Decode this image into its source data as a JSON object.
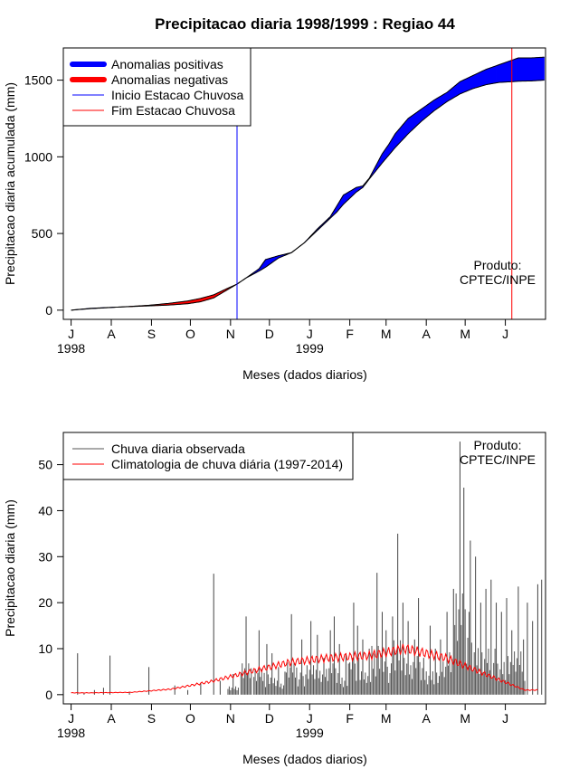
{
  "title": "Precipitacao diaria 1998/1999 : Regiao 44",
  "product_label": "Produto:",
  "product_org": "CPTEC/INPE",
  "chart_data": [
    {
      "type": "area",
      "name": "cumulative",
      "ylabel": "Precipitacao diaria acumulada (mm)",
      "xlabel": "Meses (dados diarios)",
      "x_ticks": [
        "J",
        "A",
        "S",
        "O",
        "N",
        "D",
        "J",
        "F",
        "M",
        "A",
        "M",
        "J"
      ],
      "x_years": [
        "1998",
        "1999"
      ],
      "y_ticks": [
        0,
        500,
        1000,
        1500
      ],
      "ylim": [
        -60,
        1710
      ],
      "xlim_days": [
        -6,
        366
      ],
      "legend": [
        {
          "label": "Anomalias positivas",
          "color": "#0000ff",
          "style": "thick"
        },
        {
          "label": "Anomalias negativas",
          "color": "#ff0000",
          "style": "thick"
        },
        {
          "label": "Inicio Estacao Chuvosa",
          "color": "#0000ff",
          "style": "thin"
        },
        {
          "label": "Fim Estacao Chuvosa",
          "color": "#ff0000",
          "style": "thin"
        }
      ],
      "rain_season_start_day": 128,
      "rain_season_end_day": 340,
      "observed_cumulative": [
        [
          0,
          0
        ],
        [
          15,
          12
        ],
        [
          30,
          18
        ],
        [
          45,
          23
        ],
        [
          60,
          28
        ],
        [
          75,
          33
        ],
        [
          90,
          42
        ],
        [
          100,
          55
        ],
        [
          110,
          80
        ],
        [
          120,
          130
        ],
        [
          128,
          170
        ],
        [
          135,
          210
        ],
        [
          145,
          270
        ],
        [
          150,
          330
        ],
        [
          160,
          355
        ],
        [
          170,
          375
        ],
        [
          180,
          440
        ],
        [
          190,
          530
        ],
        [
          200,
          610
        ],
        [
          205,
          680
        ],
        [
          210,
          750
        ],
        [
          220,
          800
        ],
        [
          225,
          810
        ],
        [
          230,
          860
        ],
        [
          240,
          1020
        ],
        [
          245,
          1080
        ],
        [
          250,
          1150
        ],
        [
          260,
          1250
        ],
        [
          270,
          1310
        ],
        [
          280,
          1370
        ],
        [
          290,
          1420
        ],
        [
          300,
          1490
        ],
        [
          310,
          1530
        ],
        [
          320,
          1570
        ],
        [
          330,
          1600
        ],
        [
          340,
          1630
        ],
        [
          345,
          1645
        ],
        [
          355,
          1645
        ],
        [
          365,
          1650
        ]
      ],
      "climatology_cumulative": [
        [
          0,
          0
        ],
        [
          15,
          10
        ],
        [
          30,
          17
        ],
        [
          45,
          24
        ],
        [
          60,
          32
        ],
        [
          75,
          44
        ],
        [
          90,
          60
        ],
        [
          100,
          77
        ],
        [
          110,
          100
        ],
        [
          120,
          140
        ],
        [
          128,
          170
        ],
        [
          135,
          210
        ],
        [
          145,
          255
        ],
        [
          150,
          280
        ],
        [
          160,
          340
        ],
        [
          170,
          375
        ],
        [
          180,
          440
        ],
        [
          190,
          520
        ],
        [
          200,
          600
        ],
        [
          205,
          640
        ],
        [
          210,
          690
        ],
        [
          220,
          770
        ],
        [
          225,
          800
        ],
        [
          230,
          855
        ],
        [
          240,
          960
        ],
        [
          245,
          1010
        ],
        [
          250,
          1060
        ],
        [
          260,
          1150
        ],
        [
          270,
          1230
        ],
        [
          280,
          1300
        ],
        [
          290,
          1360
        ],
        [
          300,
          1410
        ],
        [
          310,
          1445
        ],
        [
          320,
          1470
        ],
        [
          330,
          1485
        ],
        [
          340,
          1490
        ],
        [
          345,
          1493
        ],
        [
          355,
          1495
        ],
        [
          365,
          1500
        ]
      ]
    },
    {
      "type": "bar",
      "name": "daily",
      "ylabel": "Precipitacao diaria (mm)",
      "xlabel": "Meses (dados diarios)",
      "x_ticks": [
        "J",
        "A",
        "S",
        "O",
        "N",
        "D",
        "J",
        "F",
        "M",
        "A",
        "M",
        "J"
      ],
      "x_years": [
        "1998",
        "1999"
      ],
      "y_ticks": [
        0,
        10,
        20,
        30,
        40,
        50
      ],
      "ylim": [
        -2,
        57
      ],
      "xlim_days": [
        -6,
        366
      ],
      "legend": [
        {
          "label": "Chuva diaria observada",
          "color": "#555555"
        },
        {
          "label": "Climatologia de chuva diária (1997-2014)",
          "color": "#ff0000"
        }
      ],
      "observed_peaks": [
        [
          5,
          9.0
        ],
        [
          10,
          0.4
        ],
        [
          18,
          1.0
        ],
        [
          25,
          1.5
        ],
        [
          30,
          8.5
        ],
        [
          45,
          0.5
        ],
        [
          60,
          6.0
        ],
        [
          80,
          2.0
        ],
        [
          90,
          1.0
        ],
        [
          100,
          2.5
        ],
        [
          110,
          26.3
        ],
        [
          115,
          3.0
        ],
        [
          125,
          4.5
        ],
        [
          135,
          17.0
        ],
        [
          145,
          14.0
        ],
        [
          151,
          11.0
        ],
        [
          155,
          9.0
        ],
        [
          160,
          6.0
        ],
        [
          165,
          5.0
        ],
        [
          170,
          17.5
        ],
        [
          178,
          12.0
        ],
        [
          185,
          16.0
        ],
        [
          190,
          13.0
        ],
        [
          195,
          8.0
        ],
        [
          200,
          14.0
        ],
        [
          203,
          17.0
        ],
        [
          207,
          11.0
        ],
        [
          212,
          9.0
        ],
        [
          215,
          7.0
        ],
        [
          218,
          20.0
        ],
        [
          221,
          15.0
        ],
        [
          225,
          12.0
        ],
        [
          230,
          10.0
        ],
        [
          236,
          26.5
        ],
        [
          240,
          18.0
        ],
        [
          243,
          14.0
        ],
        [
          248,
          17.0
        ],
        [
          252,
          35.0
        ],
        [
          256,
          20.0
        ],
        [
          260,
          16.0
        ],
        [
          265,
          12.0
        ],
        [
          268,
          21.0
        ],
        [
          272,
          8.0
        ],
        [
          277,
          15.0
        ],
        [
          281,
          10.0
        ],
        [
          285,
          12.0
        ],
        [
          290,
          18.0
        ],
        [
          295,
          23.0
        ],
        [
          300,
          55.0
        ],
        [
          303,
          45.0
        ],
        [
          308,
          33.5
        ],
        [
          312,
          30.0
        ],
        [
          316,
          20.0
        ],
        [
          320,
          23.0
        ],
        [
          324,
          25.0
        ],
        [
          328,
          20.0
        ],
        [
          332,
          18.0
        ],
        [
          336,
          21.0
        ],
        [
          340,
          14.0
        ],
        [
          345,
          23.5
        ],
        [
          349,
          12.0
        ],
        [
          352,
          20.0
        ],
        [
          356,
          16.0
        ],
        [
          360,
          24.0
        ],
        [
          363,
          25.0
        ],
        [
          366,
          12.5
        ]
      ],
      "climatology_monthly": [
        {
          "month": "J",
          "value": 0.4
        },
        {
          "month": "A",
          "value": 0.5
        },
        {
          "month": "S",
          "value": 1.2
        },
        {
          "month": "O",
          "value": 2.8
        },
        {
          "month": "N",
          "value": 5.0
        },
        {
          "month": "D",
          "value": 7.0
        },
        {
          "month": "J",
          "value": 8.0
        },
        {
          "month": "F",
          "value": 8.5
        },
        {
          "month": "M",
          "value": 10.0
        },
        {
          "month": "A",
          "value": 8.0
        },
        {
          "month": "M",
          "value": 4.5
        },
        {
          "month": "J",
          "value": 1.0
        }
      ]
    }
  ]
}
